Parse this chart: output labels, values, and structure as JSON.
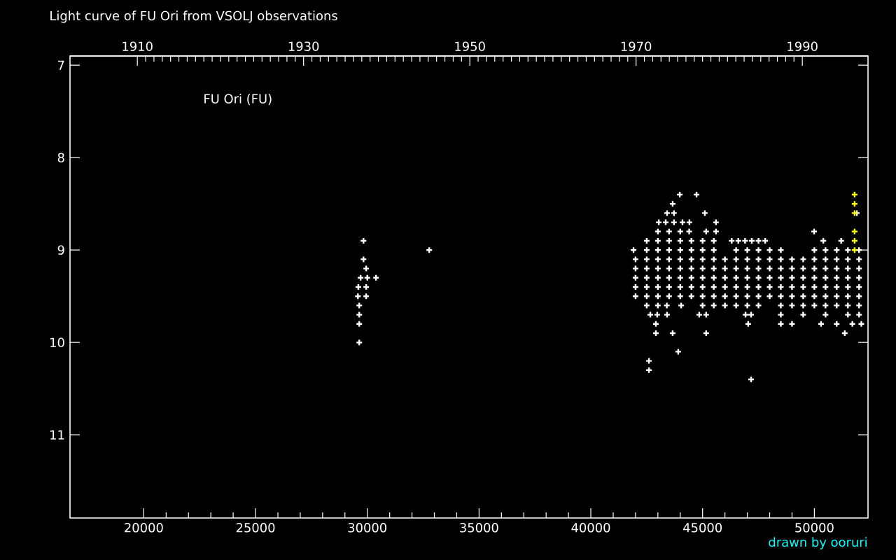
{
  "chart_data": {
    "type": "scatter",
    "title": "Light curve of FU Ori from VSOLJ observations",
    "annotations": [
      "FU Ori (FU)",
      "drawn by ooruri"
    ],
    "marker": "cross",
    "xlim": [
      16700,
      52400
    ],
    "xticks": [
      20000,
      25000,
      30000,
      35000,
      40000,
      45000,
      50000
    ],
    "x2lim": [
      1901.9,
      1997.9
    ],
    "x2ticks": [
      1910,
      1930,
      1950,
      1970,
      1990
    ],
    "ylim": [
      11.9,
      6.9
    ],
    "yticks": [
      7,
      8,
      9,
      10,
      11
    ],
    "series": [
      {
        "color": "#ffffff",
        "x": [
          29830,
          29830,
          29950,
          29700,
          30000,
          30390,
          29600,
          29950,
          29580,
          29950,
          29640,
          29640,
          29640,
          29640,
          32770,
          43980,
          44730,
          43660,
          43410,
          43720,
          45100,
          51900,
          43040,
          43350,
          43720,
          44100,
          44410,
          45600,
          43000,
          43500,
          44000,
          44400,
          45160,
          45600,
          49990,
          42500,
          43000,
          43500,
          44000,
          44500,
          45000,
          45500,
          46300,
          46600,
          46900,
          47200,
          47500,
          47800,
          50400,
          51200,
          41910,
          42500,
          43000,
          43500,
          44000,
          44500,
          45000,
          45500,
          46500,
          47000,
          47500,
          48000,
          48500,
          50000,
          50500,
          51000,
          51500,
          52000,
          42000,
          42500,
          43000,
          43500,
          44000,
          44500,
          45000,
          45500,
          46000,
          46500,
          47000,
          47500,
          48000,
          48500,
          49000,
          49500,
          50000,
          50500,
          51000,
          51500,
          52000,
          42000,
          42500,
          43000,
          43500,
          44000,
          44500,
          45000,
          45500,
          46000,
          46500,
          47000,
          47500,
          48000,
          48500,
          49000,
          49500,
          50000,
          50500,
          51000,
          51500,
          52000,
          42000,
          42500,
          43000,
          43500,
          44000,
          44500,
          45000,
          45500,
          46000,
          46500,
          47000,
          47500,
          48000,
          48500,
          49000,
          49500,
          50000,
          50500,
          51000,
          51500,
          52000,
          42000,
          42500,
          43000,
          43500,
          44000,
          44500,
          45000,
          45500,
          46000,
          46500,
          47000,
          47500,
          48000,
          48500,
          49000,
          49500,
          50000,
          50500,
          51000,
          51500,
          52000,
          42000,
          42500,
          43000,
          43500,
          44000,
          44500,
          45000,
          45500,
          46000,
          46500,
          47000,
          47500,
          48000,
          48500,
          49000,
          49500,
          50000,
          50500,
          51000,
          51500,
          52000,
          42500,
          43000,
          43400,
          44040,
          45000,
          45500,
          46000,
          46500,
          47000,
          47500,
          48500,
          49000,
          49500,
          50000,
          50500,
          51000,
          51500,
          52000,
          42660,
          42970,
          43410,
          44850,
          45160,
          46920,
          47170,
          48500,
          49500,
          50500,
          51500,
          52000,
          42910,
          47040,
          48500,
          49000,
          50300,
          51000,
          51700,
          52100,
          42910,
          43660,
          45160,
          51360,
          43910,
          42600,
          42600,
          47170
        ],
        "values": [
          8.9,
          9.1,
          9.2,
          9.3,
          9.3,
          9.3,
          9.4,
          9.4,
          9.5,
          9.5,
          9.6,
          9.7,
          9.8,
          10.0,
          9.0,
          8.4,
          8.4,
          8.5,
          8.6,
          8.6,
          8.6,
          8.6,
          8.7,
          8.7,
          8.7,
          8.7,
          8.7,
          8.7,
          8.8,
          8.8,
          8.8,
          8.8,
          8.8,
          8.8,
          8.8,
          8.9,
          8.9,
          8.9,
          8.9,
          8.9,
          8.9,
          8.9,
          8.9,
          8.9,
          8.9,
          8.9,
          8.9,
          8.9,
          8.9,
          8.9,
          9.0,
          9.0,
          9.0,
          9.0,
          9.0,
          9.0,
          9.0,
          9.0,
          9.0,
          9.0,
          9.0,
          9.0,
          9.0,
          9.0,
          9.0,
          9.0,
          9.0,
          9.0,
          9.1,
          9.1,
          9.1,
          9.1,
          9.1,
          9.1,
          9.1,
          9.1,
          9.1,
          9.1,
          9.1,
          9.1,
          9.1,
          9.1,
          9.1,
          9.1,
          9.1,
          9.1,
          9.1,
          9.1,
          9.1,
          9.2,
          9.2,
          9.2,
          9.2,
          9.2,
          9.2,
          9.2,
          9.2,
          9.2,
          9.2,
          9.2,
          9.2,
          9.2,
          9.2,
          9.2,
          9.2,
          9.2,
          9.2,
          9.2,
          9.2,
          9.2,
          9.3,
          9.3,
          9.3,
          9.3,
          9.3,
          9.3,
          9.3,
          9.3,
          9.3,
          9.3,
          9.3,
          9.3,
          9.3,
          9.3,
          9.3,
          9.3,
          9.3,
          9.3,
          9.3,
          9.3,
          9.3,
          9.4,
          9.4,
          9.4,
          9.4,
          9.4,
          9.4,
          9.4,
          9.4,
          9.4,
          9.4,
          9.4,
          9.4,
          9.4,
          9.4,
          9.4,
          9.4,
          9.4,
          9.4,
          9.4,
          9.4,
          9.4,
          9.5,
          9.5,
          9.5,
          9.5,
          9.5,
          9.5,
          9.5,
          9.5,
          9.5,
          9.5,
          9.5,
          9.5,
          9.5,
          9.5,
          9.5,
          9.5,
          9.5,
          9.5,
          9.5,
          9.5,
          9.5,
          9.6,
          9.6,
          9.6,
          9.6,
          9.6,
          9.6,
          9.6,
          9.6,
          9.6,
          9.6,
          9.6,
          9.6,
          9.6,
          9.6,
          9.6,
          9.6,
          9.6,
          9.6,
          9.7,
          9.7,
          9.7,
          9.7,
          9.7,
          9.7,
          9.7,
          9.7,
          9.7,
          9.7,
          9.7,
          9.7,
          9.8,
          9.8,
          9.8,
          9.8,
          9.8,
          9.8,
          9.8,
          9.8,
          9.9,
          9.9,
          9.9,
          9.9,
          10.1,
          10.2,
          10.3,
          10.4
        ]
      },
      {
        "color": "#ffff00",
        "x": [
          51800,
          51800,
          51800,
          51800,
          51800,
          51800
        ],
        "values": [
          8.4,
          8.5,
          8.6,
          8.8,
          8.9,
          9.0
        ]
      }
    ]
  }
}
